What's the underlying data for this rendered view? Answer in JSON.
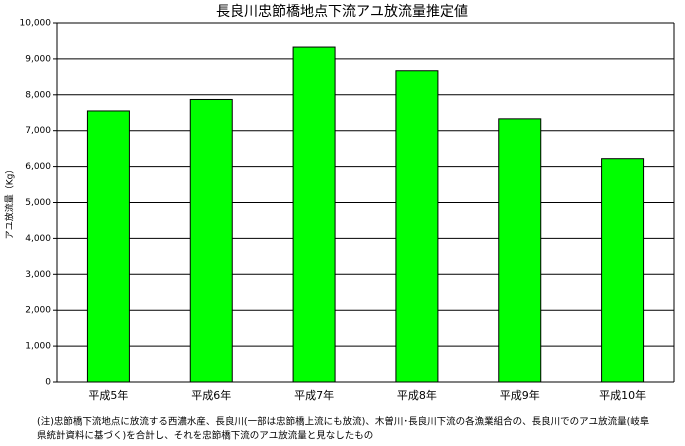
{
  "chart_data": {
    "type": "bar",
    "title": "長良川忠節橋地点下流アユ放流量推定値",
    "y_label": "アユ放流量（Kg）",
    "categories": [
      "平成5年",
      "平成6年",
      "平成7年",
      "平成8年",
      "平成9年",
      "平成10年"
    ],
    "values": [
      7550,
      7870,
      9330,
      8670,
      7330,
      6220
    ],
    "color": "#00ff00",
    "ylim": [
      0,
      10000
    ],
    "yticks": [
      0,
      {
        "value": 1000,
        "label": "1,000"
      },
      {
        "value": 2000,
        "label": "2,000"
      },
      {
        "value": 3000,
        "label": "3,000"
      },
      {
        "value": 4000,
        "label": "4,000"
      },
      {
        "value": 5000,
        "label": "5,000"
      },
      {
        "value": 6000,
        "label": "6,000"
      },
      {
        "value": 7000,
        "label": "7,000"
      },
      {
        "value": 8000,
        "label": "8,000"
      },
      {
        "value": 9000,
        "label": "9,000"
      },
      {
        "value": 10000,
        "label": "10,000"
      }
    ],
    "grid": true,
    "notes": [
      "(注)忠節橋下流地点に放流する西濃水産、長良川(一部は忠節橋上流にも放流)、木曽川･長良川下流の各漁業組合の、長良川でのアユ放流量(岐阜",
      "県統計資料に基づく)を合計し、それを忠節橋下流のアユ放流量と見なしたもの"
    ]
  }
}
